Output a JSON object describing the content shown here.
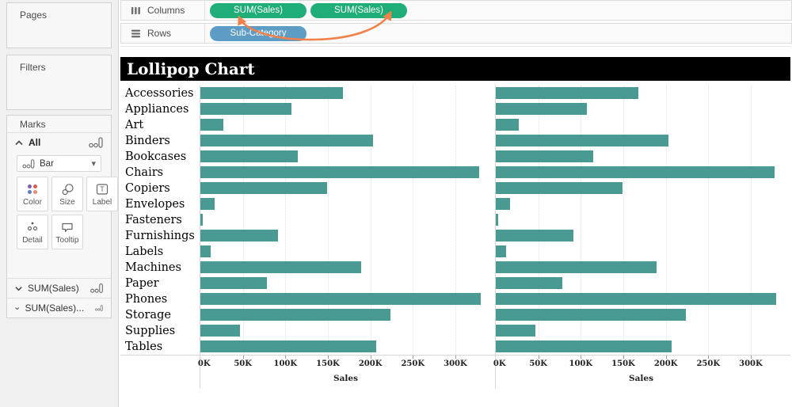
{
  "sidebar": {
    "pages_label": "Pages",
    "filters_label": "Filters",
    "marks_label": "Marks",
    "all_label": "All",
    "mark_type": "Bar",
    "buttons": {
      "color": "Color",
      "size": "Size",
      "label": "Label",
      "detail": "Detail",
      "tooltip": "Tooltip"
    },
    "extra_cards": [
      "SUM(Sales)",
      "SUM(Sales)..."
    ]
  },
  "shelves": {
    "columns_label": "Columns",
    "rows_label": "Rows",
    "columns_pills": [
      "SUM(Sales)",
      "SUM(Sales)"
    ],
    "rows_pills": [
      "Sub-Category"
    ]
  },
  "colors": {
    "pill_green": "#1fad78",
    "pill_blue": "#5d9cc4",
    "bar_teal": "#4a9a94",
    "arrow_orange": "#f0814b",
    "title_bg": "#000000",
    "title_fg": "#ffffff"
  },
  "chart_data": {
    "type": "bar",
    "orientation": "horizontal",
    "title": "Lollipop Chart",
    "xlabel": "Sales",
    "categories": [
      "Accessories",
      "Appliances",
      "Art",
      "Binders",
      "Bookcases",
      "Chairs",
      "Copiers",
      "Envelopes",
      "Fasteners",
      "Furnishings",
      "Labels",
      "Machines",
      "Paper",
      "Phones",
      "Storage",
      "Supplies",
      "Tables"
    ],
    "series": [
      {
        "name": "SUM(Sales)",
        "values": [
          167380,
          107532,
          27119,
          203413,
          114880,
          328449,
          149528,
          16476,
          3024,
          91705,
          12486,
          189239,
          78479,
          330007,
          223844,
          46674,
          206966
        ]
      },
      {
        "name": "SUM(Sales) (2)",
        "values": [
          167380,
          107532,
          27119,
          203413,
          114880,
          328449,
          149528,
          16476,
          3024,
          91705,
          12486,
          189239,
          78479,
          330007,
          223844,
          46674,
          206966
        ]
      }
    ],
    "x_ticks": [
      "0K",
      "50K",
      "100K",
      "150K",
      "200K",
      "250K",
      "300K"
    ],
    "x_tick_values": [
      0,
      50000,
      100000,
      150000,
      200000,
      250000,
      300000
    ],
    "xlim": [
      0,
      342000
    ],
    "grid": "dotted-vertical",
    "legend": "none",
    "bar_color": "#4a9a94"
  }
}
